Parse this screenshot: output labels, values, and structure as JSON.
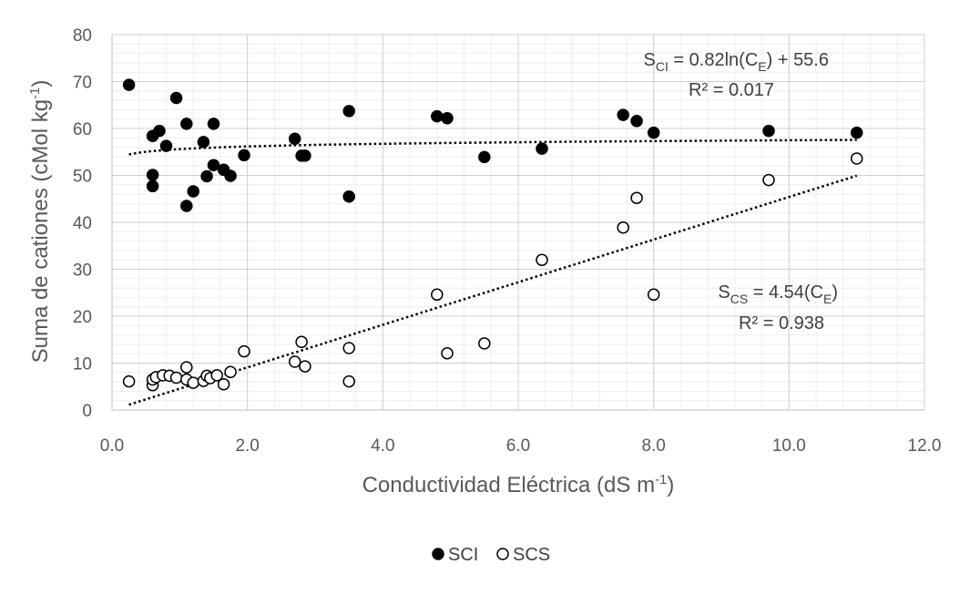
{
  "chart_data": {
    "type": "scatter",
    "title": "",
    "xlabel": {
      "text": "Conductividad Eléctrica (dS m",
      "sup": "-1",
      "tail": ")"
    },
    "ylabel": {
      "text": "Suma de cationes (cMol kg",
      "sup": "-1",
      "tail": ")"
    },
    "xlim": [
      0,
      12
    ],
    "ylim": [
      0,
      80
    ],
    "x_ticks": [
      "0.0",
      "2.0",
      "4.0",
      "6.0",
      "8.0",
      "10.0",
      "12.0"
    ],
    "y_ticks": [
      "0",
      "10",
      "20",
      "30",
      "40",
      "50",
      "60",
      "70",
      "80"
    ],
    "grid": true,
    "legend_position": "bottom",
    "series": [
      {
        "name": "SCI",
        "marker": "filled-circle",
        "color": "#000000",
        "points": [
          [
            0.25,
            69.3
          ],
          [
            0.6,
            58.4
          ],
          [
            0.6,
            50.1
          ],
          [
            0.6,
            47.7
          ],
          [
            0.7,
            59.5
          ],
          [
            0.8,
            56.3
          ],
          [
            0.95,
            66.5
          ],
          [
            1.1,
            61.0
          ],
          [
            1.1,
            43.5
          ],
          [
            1.2,
            46.6
          ],
          [
            1.35,
            57.1
          ],
          [
            1.4,
            49.8
          ],
          [
            1.5,
            61.0
          ],
          [
            1.5,
            52.2
          ],
          [
            1.65,
            51.2
          ],
          [
            1.75,
            49.9
          ],
          [
            1.95,
            54.3
          ],
          [
            2.7,
            57.8
          ],
          [
            2.8,
            54.2
          ],
          [
            2.85,
            54.2
          ],
          [
            3.5,
            63.7
          ],
          [
            3.5,
            45.5
          ],
          [
            4.8,
            62.6
          ],
          [
            4.95,
            62.2
          ],
          [
            5.5,
            53.9
          ],
          [
            6.35,
            55.7
          ],
          [
            7.55,
            62.9
          ],
          [
            7.75,
            61.6
          ],
          [
            8.0,
            59.1
          ],
          [
            9.7,
            59.5
          ],
          [
            11.0,
            59.1
          ]
        ],
        "trendline": {
          "kind": "logarithmic",
          "a": 0.82,
          "b": 55.6,
          "x_range": [
            0.25,
            11.0
          ],
          "equation": {
            "lhs": "S",
            "lhs_sub": "CI",
            "mid": " = 0.82ln(C",
            "mid_sub": "E",
            "rhs": ") + 55.6"
          },
          "r2": "R² = 0.017"
        }
      },
      {
        "name": "SCS",
        "marker": "open-circle",
        "color": "#000000",
        "points": [
          [
            0.25,
            6.1
          ],
          [
            0.6,
            5.3
          ],
          [
            0.6,
            6.5
          ],
          [
            0.65,
            7.0
          ],
          [
            0.75,
            7.4
          ],
          [
            0.85,
            7.3
          ],
          [
            0.95,
            6.9
          ],
          [
            1.1,
            9.1
          ],
          [
            1.1,
            6.5
          ],
          [
            1.2,
            5.8
          ],
          [
            1.35,
            6.2
          ],
          [
            1.4,
            7.3
          ],
          [
            1.45,
            6.8
          ],
          [
            1.55,
            7.4
          ],
          [
            1.65,
            5.5
          ],
          [
            1.75,
            8.1
          ],
          [
            1.95,
            12.5
          ],
          [
            2.7,
            10.3
          ],
          [
            2.8,
            14.5
          ],
          [
            2.85,
            9.3
          ],
          [
            3.5,
            13.2
          ],
          [
            3.5,
            6.1
          ],
          [
            4.8,
            24.6
          ],
          [
            4.95,
            12.1
          ],
          [
            5.5,
            14.2
          ],
          [
            6.35,
            32.0
          ],
          [
            7.55,
            38.9
          ],
          [
            7.75,
            45.2
          ],
          [
            8.0,
            24.6
          ],
          [
            9.7,
            49.0
          ],
          [
            11.0,
            53.6
          ]
        ],
        "trendline": {
          "kind": "linear",
          "slope": 4.54,
          "x_range": [
            0.25,
            11.0
          ],
          "equation": {
            "lhs": "S",
            "lhs_sub": "CS",
            "mid": " = 4.54(C",
            "mid_sub": "E",
            "rhs": ")"
          },
          "r2": "R² = 0.938"
        }
      }
    ]
  }
}
